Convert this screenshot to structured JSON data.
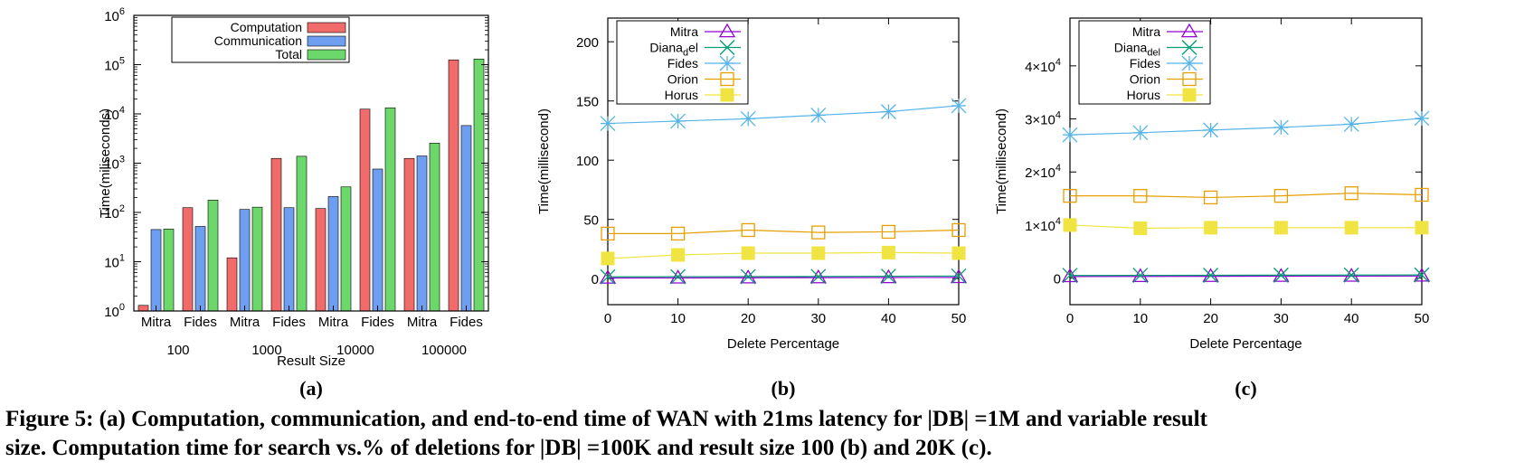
{
  "caption": {
    "line1": "Figure 5: (a) Computation, communication, and end-to-end time of WAN with 21ms latency for |DB| =1M and variable result",
    "line2": "size. Computation time for search vs.% of deletions for |DB| =100K and result size 100 (b) and 20K (c)."
  },
  "chart_data": [
    {
      "id": "a",
      "panel_label": "(a)",
      "type": "bar",
      "title": "",
      "xlabel": "Result Size",
      "ylabel": "Time(miliseconds)",
      "yscale": "log",
      "ylim": [
        1,
        1000000
      ],
      "yticks": [
        {
          "base": "10",
          "exp": "0"
        },
        {
          "base": "10",
          "exp": "1"
        },
        {
          "base": "10",
          "exp": "2"
        },
        {
          "base": "10",
          "exp": "3"
        },
        {
          "base": "10",
          "exp": "4"
        },
        {
          "base": "10",
          "exp": "5"
        },
        {
          "base": "10",
          "exp": "6"
        }
      ],
      "groups": [
        "100",
        "1000",
        "10000",
        "100000"
      ],
      "categories": [
        "Mitra",
        "Fides",
        "Mitra",
        "Fides",
        "Mitra",
        "Fides",
        "Mitra",
        "Fides"
      ],
      "legend_position": "top-left",
      "series": [
        {
          "name": "Computation",
          "color": "#f26b6b",
          "values": [
            1.3,
            125,
            12,
            1250,
            120,
            12500,
            1250,
            125000
          ]
        },
        {
          "name": "Communication",
          "color": "#6e9ef0",
          "values": [
            45,
            52,
            115,
            125,
            210,
            760,
            1400,
            5800
          ]
        },
        {
          "name": "Total",
          "color": "#6cd86c",
          "values": [
            46,
            178,
            128,
            1380,
            330,
            13300,
            2550,
            130000
          ]
        }
      ]
    },
    {
      "id": "b",
      "panel_label": "(b)",
      "type": "line",
      "title": "",
      "xlabel": "Delete Percentage",
      "ylabel": "Time(millisecond)",
      "xlim": [
        0,
        50
      ],
      "ylim": [
        -22,
        220
      ],
      "xticks": [
        "0",
        "10",
        "20",
        "30",
        "40",
        "50"
      ],
      "yticks": [
        "0",
        "50",
        "100",
        "150",
        "200"
      ],
      "legend_position": "top-left",
      "x": [
        0,
        10,
        20,
        30,
        40,
        50
      ],
      "series": [
        {
          "name": "Mitra",
          "color": "#9400d3",
          "marker": "triangle",
          "values": [
            0.5,
            0.6,
            0.7,
            0.8,
            0.9,
            1.0
          ]
        },
        {
          "name": "Diana",
          "sub": "d",
          "suffix": "el",
          "color": "#009e73",
          "marker": "cross",
          "values": [
            1.5,
            1.6,
            1.7,
            1.8,
            2.0,
            2.2
          ]
        },
        {
          "name": "Fides",
          "color": "#56b4e9",
          "marker": "asterisk",
          "values": [
            131,
            133,
            135,
            138,
            141,
            146
          ]
        },
        {
          "name": "Orion",
          "color": "#e69f00",
          "marker": "square-open",
          "values": [
            38,
            38,
            41,
            39,
            39.5,
            41
          ]
        },
        {
          "name": "Horus",
          "color": "#f0e442",
          "marker": "square-filled",
          "values": [
            17,
            20,
            21.5,
            21.5,
            22,
            21.5
          ]
        }
      ]
    },
    {
      "id": "c",
      "panel_label": "(c)",
      "type": "line",
      "title": "",
      "xlabel": "Delete Percentage",
      "ylabel": "Time(millisecond)",
      "xlim": [
        0,
        50
      ],
      "ylim": [
        -5000,
        49000
      ],
      "xticks": [
        "0",
        "10",
        "20",
        "30",
        "40",
        "50"
      ],
      "yticks": [
        {
          "value": 0,
          "mant": "0",
          "exp": ""
        },
        {
          "value": 10000,
          "mant": "1×10",
          "exp": "4"
        },
        {
          "value": 20000,
          "mant": "2×10",
          "exp": "4"
        },
        {
          "value": 30000,
          "mant": "3×10",
          "exp": "4"
        },
        {
          "value": 40000,
          "mant": "4×10",
          "exp": "4"
        }
      ],
      "legend_position": "top-left",
      "x": [
        0,
        10,
        20,
        30,
        40,
        50
      ],
      "series": [
        {
          "name": "Mitra",
          "color": "#9400d3",
          "marker": "triangle",
          "values": [
            300,
            320,
            340,
            360,
            380,
            400
          ]
        },
        {
          "name": "Diana",
          "sub": "del",
          "suffix": "",
          "color": "#009e73",
          "marker": "cross",
          "values": [
            500,
            520,
            540,
            560,
            580,
            600
          ]
        },
        {
          "name": "Fides",
          "color": "#56b4e9",
          "marker": "asterisk",
          "values": [
            27000,
            27400,
            27900,
            28400,
            29000,
            30100
          ]
        },
        {
          "name": "Orion",
          "color": "#e69f00",
          "marker": "square-open",
          "values": [
            15500,
            15500,
            15200,
            15500,
            16000,
            15700
          ]
        },
        {
          "name": "Horus",
          "color": "#f0e442",
          "marker": "square-filled",
          "values": [
            10000,
            9400,
            9500,
            9500,
            9500,
            9500
          ]
        }
      ]
    }
  ]
}
